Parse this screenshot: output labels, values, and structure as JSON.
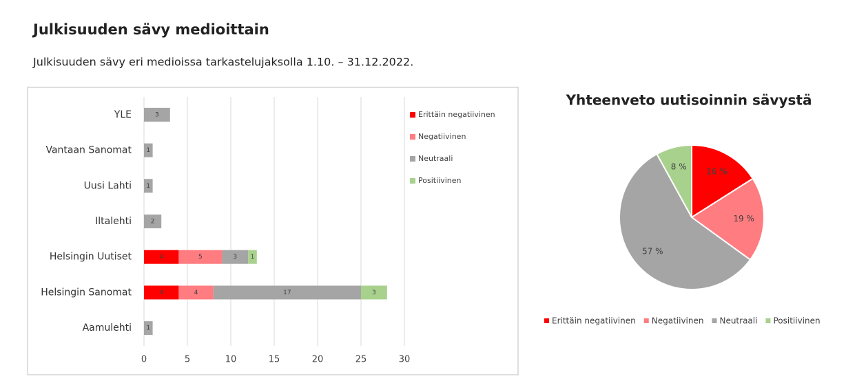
{
  "header": {
    "title": "Julkisuuden sävy medioittain",
    "subtitle": "Julkisuuden sävy eri medioissa tarkastelujaksolla 1.10. – 31.12.2022."
  },
  "chart_data": [
    {
      "type": "bar",
      "orientation": "horizontal",
      "stacked": true,
      "categories": [
        "YLE",
        "Vantaan Sanomat",
        "Uusi Lahti",
        "Iltalehti",
        "Helsingin Uutiset",
        "Helsingin Sanomat",
        "Aamulehti"
      ],
      "series": [
        {
          "name": "Erittäin negatiivinen",
          "color": "#ff0000",
          "values": [
            null,
            null,
            null,
            null,
            4,
            4,
            null
          ]
        },
        {
          "name": "Negatiivinen",
          "color": "#ff7c80",
          "values": [
            null,
            null,
            null,
            null,
            5,
            4,
            null
          ]
        },
        {
          "name": "Neutraali",
          "color": "#a5a5a5",
          "values": [
            3,
            1,
            1,
            2,
            3,
            17,
            1
          ]
        },
        {
          "name": "Positiivinen",
          "color": "#a9d18e",
          "values": [
            null,
            null,
            null,
            null,
            1,
            3,
            null
          ]
        }
      ],
      "xlim": [
        0,
        30
      ],
      "xticks": [
        0,
        5,
        10,
        15,
        20,
        25,
        30
      ],
      "grid": true,
      "legend": "right"
    },
    {
      "type": "pie",
      "title": "Yhteenveto uutisoinnin sävystä",
      "categories": [
        "Erittäin negatiivinen",
        "Negatiivinen",
        "Neutraali",
        "Positiivinen"
      ],
      "values": [
        16,
        19,
        57,
        8
      ],
      "value_labels": [
        "16 %",
        "19 %",
        "57 %",
        "8 %"
      ],
      "colors": [
        "#ff0000",
        "#ff7c80",
        "#a5a5a5",
        "#a9d18e"
      ],
      "legend": "bottom"
    }
  ]
}
